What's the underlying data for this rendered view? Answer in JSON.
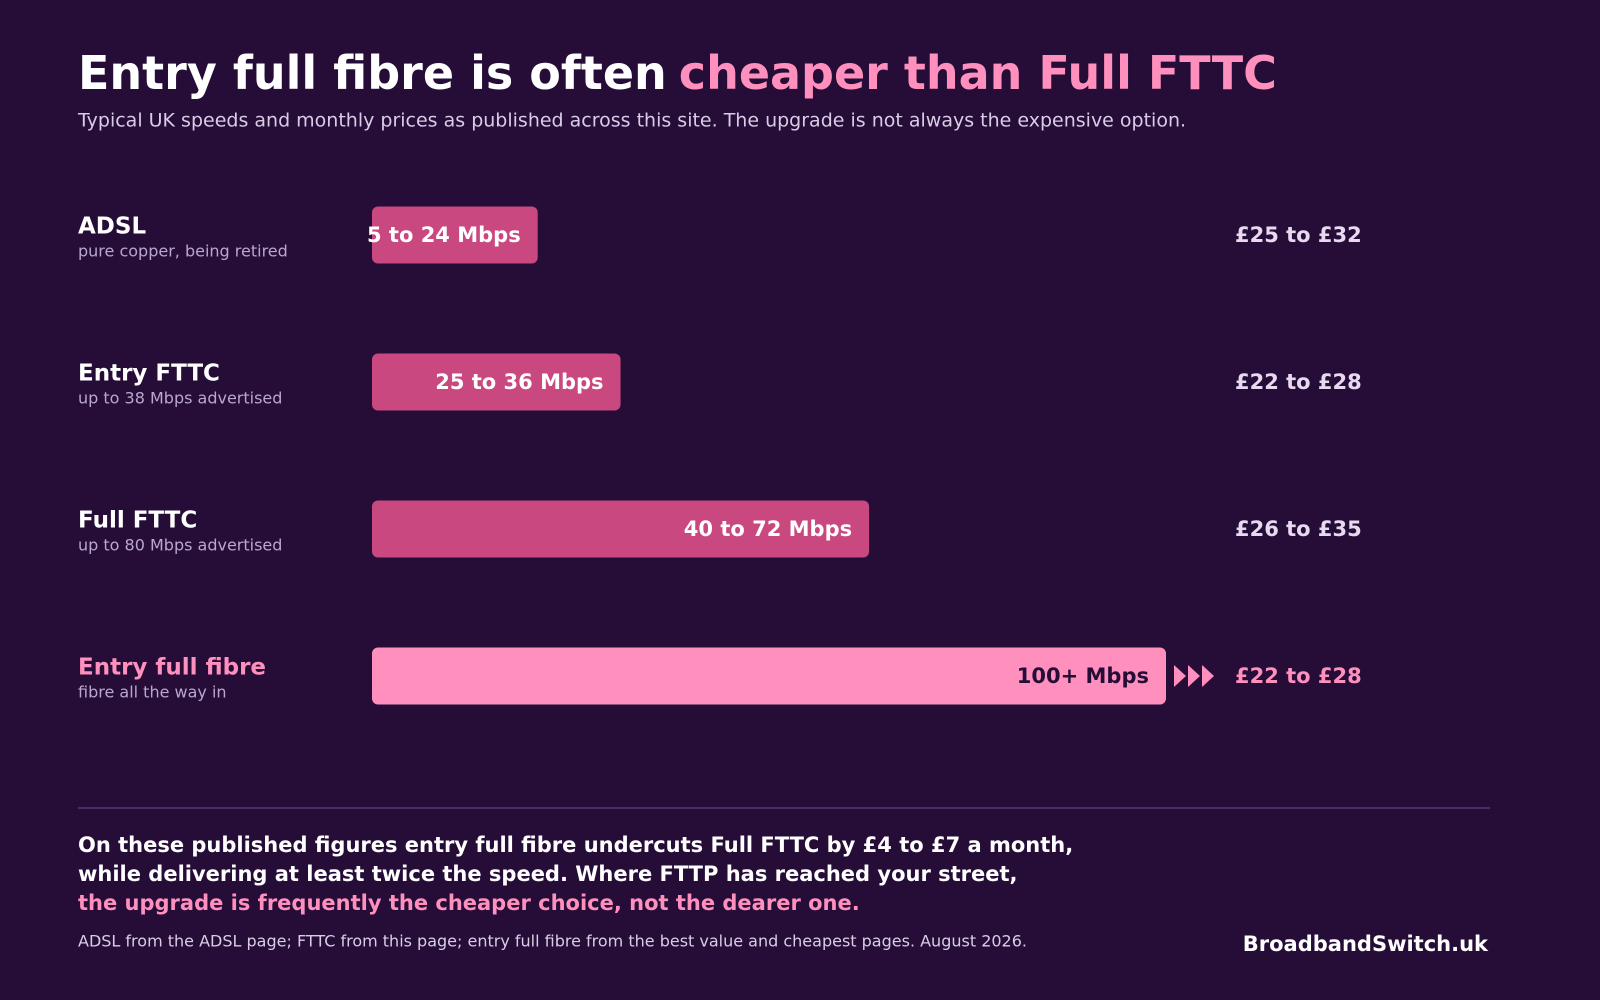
{
  "chart_data": {
    "type": "bar",
    "orientation": "horizontal",
    "title": "Entry full fibre is often",
    "title_highlight": "cheaper than Full FTTC",
    "subtitle": "Typical UK speeds and monthly prices as published across this site.  The upgrade is not always the expensive option.",
    "categories": [
      "ADSL",
      "Entry FTTC",
      "Full FTTC",
      "Entry full fibre"
    ],
    "category_notes": [
      "pure copper, being retired",
      "up to 38 Mbps advertised",
      "up to 80 Mbps advertised",
      "fibre all the way in"
    ],
    "values": [
      24,
      36,
      72,
      115
    ],
    "value_labels": [
      "5 to 24 Mbps",
      "25 to 36 Mbps",
      "40 to 72 Mbps",
      "100+ Mbps"
    ],
    "prices": [
      "£25 to £32",
      "£22 to £28",
      "£26 to £35",
      "£22 to £28"
    ],
    "colors": [
      "#c8487f",
      "#c8487f",
      "#c8487f",
      "#ff8fbd"
    ],
    "xlim": [
      0,
      115
    ],
    "footer_lines": [
      "On these published figures entry full fibre undercuts Full FTTC by £4 to £7 a month,",
      "while delivering at least twice the speed.  Where FTTP has reached your street,"
    ],
    "footer_highlight": "the upgrade is frequently the cheaper choice, not the dearer one.",
    "source": "ADSL from the ADSL page; FTTC from this page; entry full fibre from the best value and cheapest pages.  August 2026.",
    "brand": "BroadbandSwitch.uk"
  }
}
